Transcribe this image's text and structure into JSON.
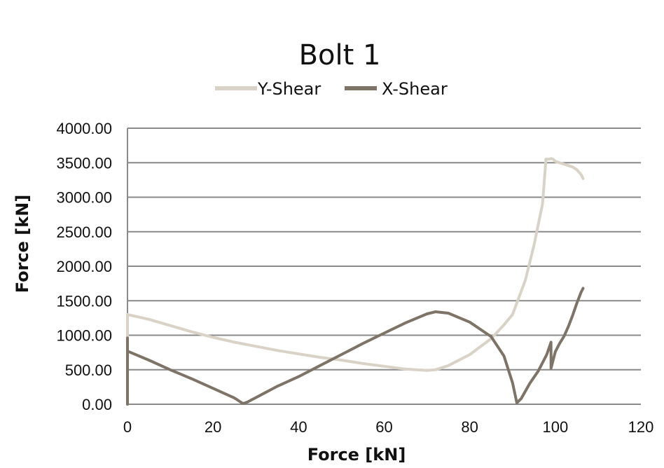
{
  "chart_data": {
    "type": "line",
    "title": "Bolt 1",
    "xlabel": "Force [kN]",
    "ylabel": "Force [kN]",
    "xlim": [
      0,
      120
    ],
    "ylim": [
      0,
      4000
    ],
    "x_ticks": [
      "0",
      "20",
      "40",
      "60",
      "80",
      "100",
      "120"
    ],
    "y_ticks": [
      "0.00",
      "500.00",
      "1000.00",
      "1500.00",
      "2000.00",
      "2500.00",
      "3000.00",
      "3500.00",
      "4000.00"
    ],
    "grid": true,
    "legend_position": "top",
    "series": [
      {
        "name": "Y-Shear",
        "color": "#d8d3c6",
        "points": [
          [
            0,
            0
          ],
          [
            0,
            1300
          ],
          [
            5,
            1230
          ],
          [
            10,
            1140
          ],
          [
            15,
            1050
          ],
          [
            20,
            970
          ],
          [
            25,
            900
          ],
          [
            30,
            840
          ],
          [
            35,
            780
          ],
          [
            40,
            730
          ],
          [
            45,
            680
          ],
          [
            50,
            640
          ],
          [
            55,
            590
          ],
          [
            60,
            550
          ],
          [
            65,
            510
          ],
          [
            70,
            490
          ],
          [
            72,
            500
          ],
          [
            75,
            560
          ],
          [
            80,
            720
          ],
          [
            85,
            950
          ],
          [
            88,
            1150
          ],
          [
            90,
            1300
          ],
          [
            93,
            1800
          ],
          [
            95,
            2300
          ],
          [
            97,
            2900
          ],
          [
            97.5,
            3300
          ],
          [
            97.8,
            3550
          ],
          [
            98.5,
            3550
          ],
          [
            99,
            3560
          ],
          [
            99.5,
            3550
          ],
          [
            100,
            3520
          ],
          [
            101,
            3500
          ],
          [
            103,
            3460
          ],
          [
            104,
            3440
          ],
          [
            105,
            3400
          ],
          [
            106,
            3330
          ],
          [
            106.5,
            3270
          ]
        ]
      },
      {
        "name": "X-Shear",
        "color": "#7d7467",
        "points": [
          [
            0,
            0
          ],
          [
            0,
            960
          ],
          [
            0,
            770
          ],
          [
            5,
            640
          ],
          [
            10,
            500
          ],
          [
            15,
            370
          ],
          [
            20,
            230
          ],
          [
            25,
            90
          ],
          [
            27,
            10
          ],
          [
            28,
            30
          ],
          [
            35,
            260
          ],
          [
            40,
            400
          ],
          [
            45,
            560
          ],
          [
            50,
            720
          ],
          [
            55,
            880
          ],
          [
            60,
            1030
          ],
          [
            65,
            1180
          ],
          [
            70,
            1310
          ],
          [
            72,
            1340
          ],
          [
            75,
            1320
          ],
          [
            80,
            1190
          ],
          [
            85,
            980
          ],
          [
            88,
            700
          ],
          [
            90,
            310
          ],
          [
            91,
            20
          ],
          [
            92,
            80
          ],
          [
            94,
            300
          ],
          [
            96,
            480
          ],
          [
            97,
            600
          ],
          [
            98,
            720
          ],
          [
            99,
            900
          ],
          [
            99,
            520
          ],
          [
            100,
            760
          ],
          [
            101,
            880
          ],
          [
            102,
            980
          ],
          [
            103,
            1120
          ],
          [
            104,
            1280
          ],
          [
            105,
            1460
          ],
          [
            106,
            1620
          ],
          [
            106.5,
            1680
          ]
        ]
      }
    ]
  }
}
